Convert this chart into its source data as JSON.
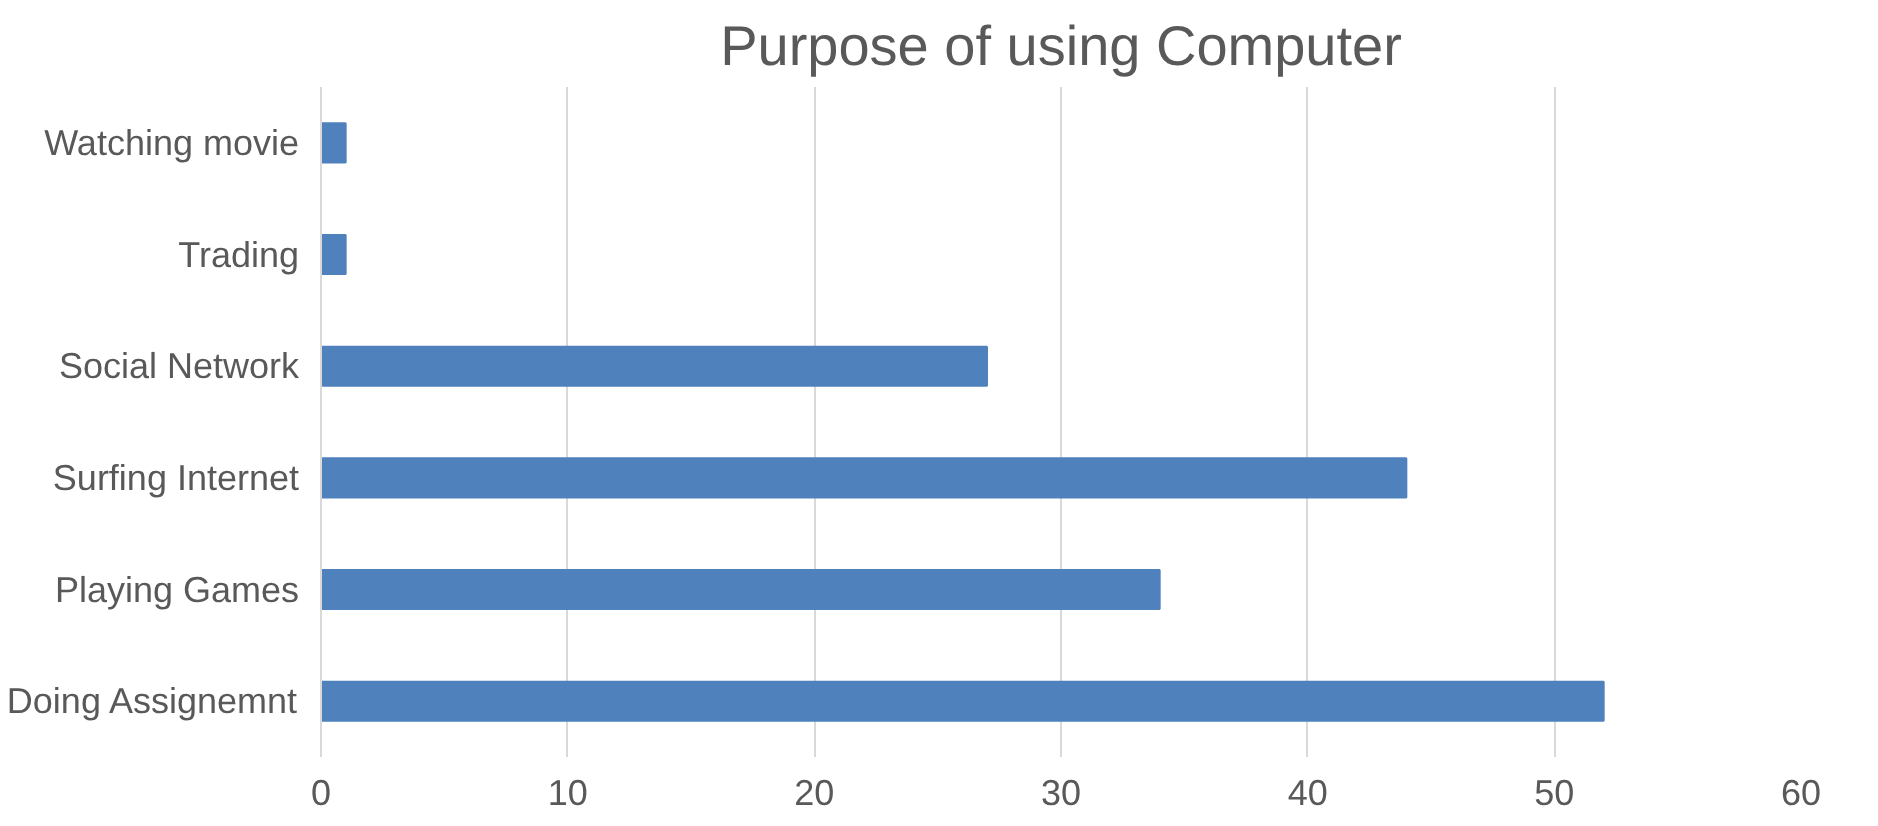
{
  "chart_data": {
    "type": "bar",
    "orientation": "horizontal",
    "title": "Purpose of using Computer",
    "categories": [
      "Watching movie",
      "Trading",
      "Social Network",
      "Surfing Internet",
      "Playing Games",
      "Doing Assignemnt"
    ],
    "values": [
      1,
      1,
      27,
      44,
      34,
      52
    ],
    "color": "#4f81bd",
    "xlim": [
      0,
      60
    ],
    "xticks": [
      0,
      10,
      20,
      30,
      40,
      50,
      60
    ],
    "grid": "x"
  }
}
